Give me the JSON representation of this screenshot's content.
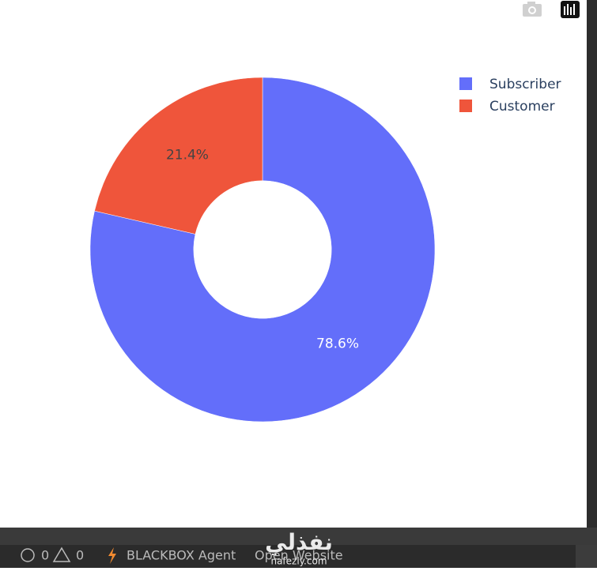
{
  "chart_data": {
    "type": "pie",
    "categories": [
      "Subscriber",
      "Customer"
    ],
    "values": [
      78.6,
      21.4
    ],
    "value_labels": [
      "78.6%",
      "21.4%"
    ],
    "colors": [
      "#636efa",
      "#ef553b"
    ],
    "label_colors": [
      "#ffffff",
      "#444444"
    ],
    "hole": 0.4,
    "legend": "top-right"
  },
  "status_bar": {
    "errors": "0",
    "warnings": "0",
    "agent": "BLACKBOX Agent",
    "link": "Open Website"
  },
  "watermark": {
    "arabic": "نفذلي",
    "latin": "nafezly.com"
  }
}
